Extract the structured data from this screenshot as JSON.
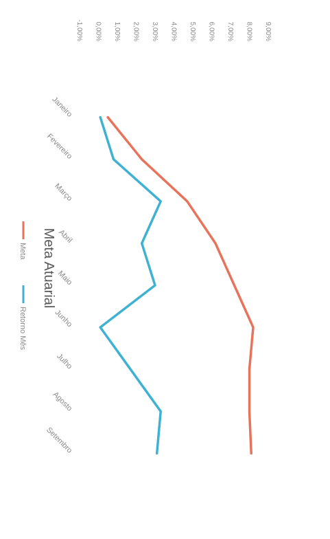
{
  "chart_data": {
    "type": "line",
    "title": "Meta Atuarial",
    "categories": [
      "Janeiro",
      "Fevereiro",
      "Março",
      "Abril",
      "Maio",
      "Junho",
      "Julho",
      "Agosto",
      "Setembro"
    ],
    "series": [
      {
        "name": "Meta",
        "color": "#e8735a",
        "values": [
          0.5,
          2.3,
          4.7,
          6.2,
          7.2,
          8.2,
          8.0,
          8.0,
          8.1
        ]
      },
      {
        "name": "Retorno Mês",
        "color": "#3fb1d2",
        "values": [
          0.1,
          0.8,
          3.3,
          2.3,
          3.0,
          0.1,
          1.7,
          3.3,
          3.1
        ]
      }
    ],
    "yticks": [
      "-1,00%",
      "0,00%",
      "1,00%",
      "2,00%",
      "3,00%",
      "4,00%",
      "5,00%",
      "6,00%",
      "7,00%",
      "8,00%",
      "9,00%"
    ],
    "ylim": [
      -1,
      9
    ],
    "legend_position": "bottom",
    "grid": false,
    "orientation": "rotated 90° clockwise"
  }
}
